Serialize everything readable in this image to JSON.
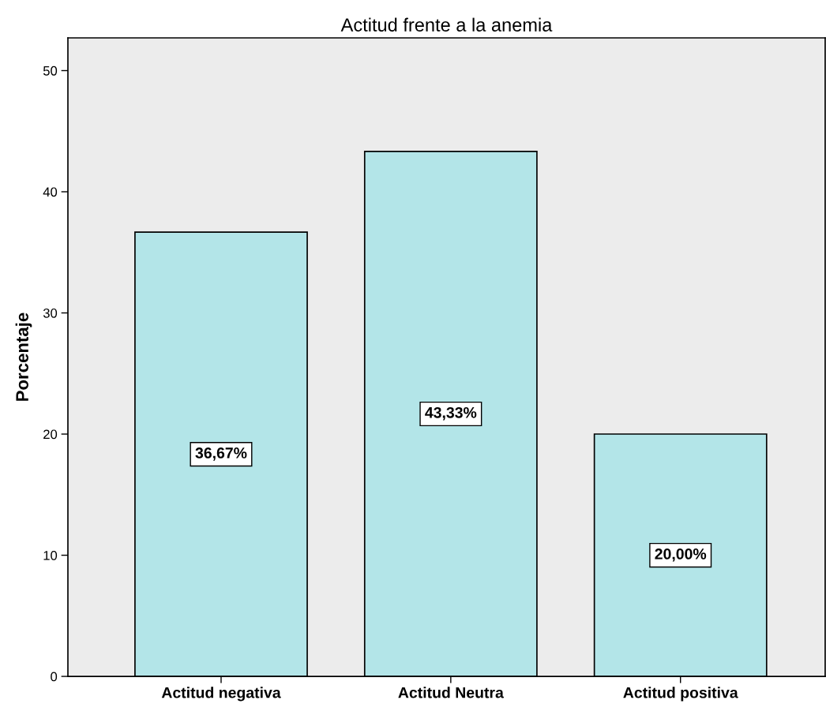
{
  "chart_data": {
    "type": "bar",
    "title": "Actitud frente a la anemia",
    "ylabel": "Porcentaje",
    "categories": [
      "Actitud negativa",
      "Actitud Neutra",
      "Actitud positiva"
    ],
    "values": [
      36.67,
      43.33,
      20.0
    ],
    "value_labels": [
      "36,67%",
      "43,33%",
      "20,00%"
    ],
    "color": "#b3e5e8",
    "ylim": [
      0,
      52.7
    ],
    "yticks": [
      0,
      10,
      20,
      30,
      40,
      50
    ],
    "grid": false,
    "legend": false
  }
}
